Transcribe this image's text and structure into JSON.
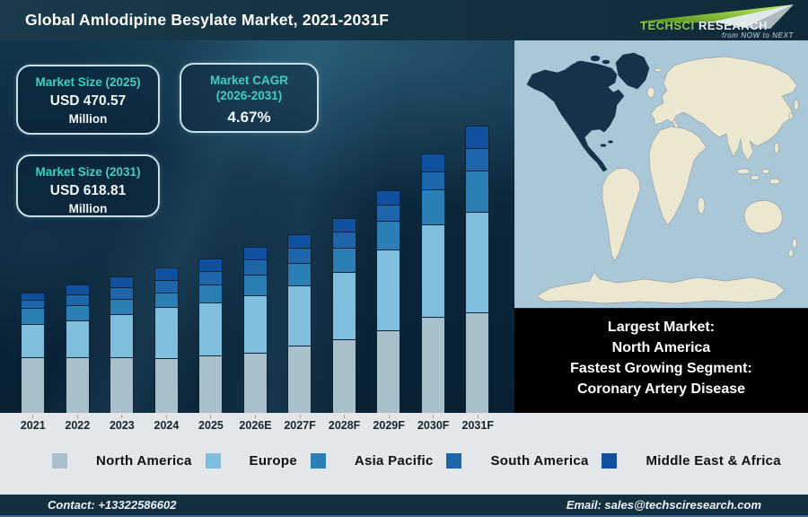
{
  "header": {
    "title": "Global Amlodipine Besylate Market, 2021-2031F",
    "logo": {
      "brand_primary": "TechSci",
      "brand_secondary": "Research",
      "tagline": "from NOW to NEXT"
    }
  },
  "stats": [
    {
      "label": "Market Size (2025)",
      "value": "USD 470.57",
      "unit": "Million"
    },
    {
      "label": "Market CAGR (2026-2031)",
      "value": "4.67%",
      "unit": ""
    },
    {
      "label": "Market Size (2031)",
      "value": "USD 618.81",
      "unit": "Million"
    }
  ],
  "chart_data": {
    "type": "bar",
    "stacked": true,
    "grid": false,
    "legend_position": "bottom",
    "value_unit": "relative visual height in px (no numeric axis shown in figure)",
    "categories": [
      "2021",
      "2022",
      "2023",
      "2024",
      "2025",
      "2026E",
      "2027F",
      "2028F",
      "2029F",
      "2030F",
      "2031F"
    ],
    "series": [
      {
        "name": "North America",
        "color": "#a9c0cb",
        "values": [
          62,
          62,
          62,
          61,
          64,
          67,
          75,
          82,
          92,
          107,
          112
        ]
      },
      {
        "name": "Europe",
        "color": "#7fbedd",
        "values": [
          37,
          41,
          48,
          57,
          59,
          64,
          67,
          75,
          90,
          103,
          112
        ]
      },
      {
        "name": "Asia Pacific",
        "color": "#2b7fb5",
        "values": [
          18,
          17,
          17,
          16,
          20,
          23,
          25,
          27,
          32,
          39,
          46
        ]
      },
      {
        "name": "South America",
        "color": "#1d66ab",
        "values": [
          9,
          12,
          13,
          14,
          15,
          17,
          17,
          18,
          18,
          20,
          25
        ]
      },
      {
        "name": "Middle East & Africa",
        "color": "#10519f",
        "values": [
          8,
          11,
          12,
          14,
          14,
          14,
          15,
          15,
          16,
          20,
          25
        ]
      }
    ],
    "annotations": {
      "market_size_2025": "USD 470.57 Million",
      "market_size_2031": "USD 618.81 Million",
      "cagr_2026_2031": "4.67%"
    }
  },
  "map": {
    "highlight_region": "North America",
    "highlight_color": "#16324b",
    "land_color": "#ece7d1",
    "ocean_color": "#a9c7d6"
  },
  "callout": {
    "lines": [
      "Largest Market:",
      "North America",
      "Fastest Growing Segment:",
      "Coronary Artery Disease"
    ]
  },
  "footer": {
    "contact": "Contact: +13322586602",
    "email": "Email: sales@techsciresearch.com"
  },
  "colors": {
    "header_bg": "#14313f",
    "chart_bg": "#0d2638",
    "accent_teal": "#3fd0c0",
    "strip_bg": "#e4e7e9",
    "callout_bg": "#010101",
    "footer_bg": "#14303f",
    "footer_edge": "#2e6a9e",
    "logo_green": "#8dc63f"
  }
}
